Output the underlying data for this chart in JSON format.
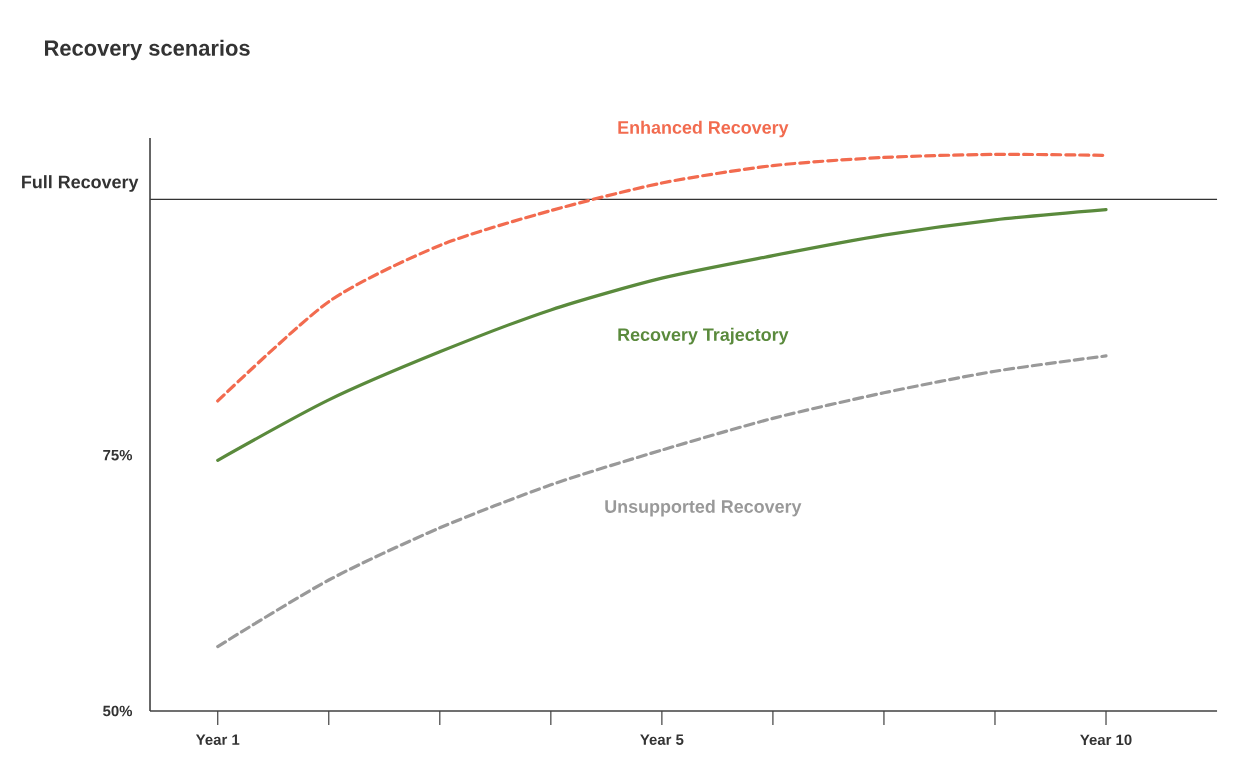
{
  "chart_data": {
    "type": "line",
    "title": "Recovery scenarios",
    "categories": [
      "Year 1",
      null,
      null,
      null,
      "Year 5",
      null,
      null,
      null,
      "Year 10"
    ],
    "series": [
      {
        "name": "Enhanced Recovery",
        "color": "#f26b4f",
        "line_style": "dashed",
        "values": [
          80.3,
          90.0,
          95.5,
          98.9,
          101.6,
          103.3,
          104.1,
          104.4,
          104.3
        ]
      },
      {
        "name": "Recovery Trajectory",
        "color": "#5a8a3c",
        "line_style": "solid",
        "values": [
          74.5,
          80.4,
          85.1,
          89.2,
          92.3,
          94.5,
          96.5,
          98.0,
          99.0
        ]
      },
      {
        "name": "Unsupported Recovery",
        "color": "#999999",
        "line_style": "dashed",
        "values": [
          56.3,
          62.8,
          67.9,
          72.1,
          75.5,
          78.6,
          81.1,
          83.2,
          84.7
        ]
      }
    ],
    "ylim": [
      50,
      106
    ],
    "yticks": [
      {
        "value": 50,
        "label": "50%"
      },
      {
        "value": 75,
        "label": "75%"
      }
    ],
    "ref_lines": [
      {
        "axis": "y",
        "value": 100,
        "label": "Full Recovery",
        "color": "#333333"
      }
    ]
  }
}
